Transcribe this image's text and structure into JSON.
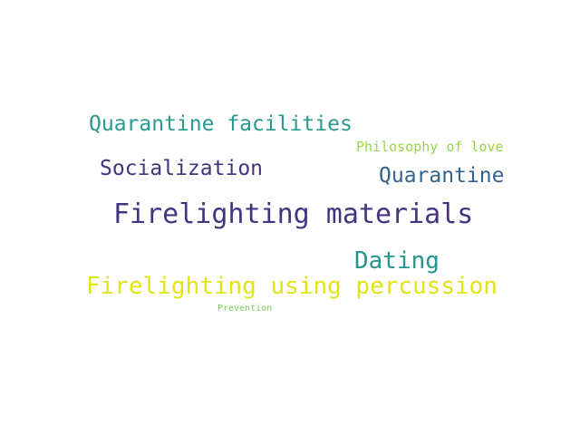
{
  "words": [
    {
      "text": "Quarantine facilities",
      "color": "#2a9a8e"
    },
    {
      "text": "Philosophy of love",
      "color": "#9ad54a"
    },
    {
      "text": "Socialization",
      "color": "#46337e"
    },
    {
      "text": "Quarantine",
      "color": "#33638d"
    },
    {
      "text": "Firelighting materials",
      "color": "#463480"
    },
    {
      "text": "Dating",
      "color": "#26958d"
    },
    {
      "text": "Firelighting using percussion",
      "color": "#e3e418"
    },
    {
      "text": "Prevention",
      "color": "#7ad151"
    }
  ]
}
